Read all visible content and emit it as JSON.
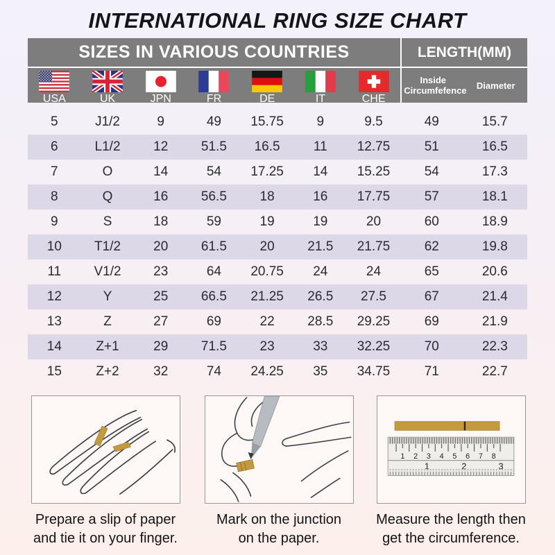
{
  "title": "INTERNATIONAL RING SIZE CHART",
  "colors": {
    "header_gray": "#7d7d7d",
    "row_stripe": "#dcd8e7",
    "paper_gold": "#c49a3e"
  },
  "table": {
    "header_left": "SIZES IN VARIOUS COUNTRIES",
    "header_right": "LENGTH(MM)",
    "countries": [
      {
        "code": "USA"
      },
      {
        "code": "UK"
      },
      {
        "code": "JPN"
      },
      {
        "code": "FR"
      },
      {
        "code": "DE"
      },
      {
        "code": "IT"
      },
      {
        "code": "CHE"
      }
    ],
    "length_columns": [
      "Inside\nCircumfefence",
      "Diameter"
    ],
    "rows": [
      [
        "5",
        "J1/2",
        "9",
        "49",
        "15.75",
        "9",
        "9.5",
        "49",
        "15.7"
      ],
      [
        "6",
        "L1/2",
        "12",
        "51.5",
        "16.5",
        "11",
        "12.75",
        "51",
        "16.5"
      ],
      [
        "7",
        "O",
        "14",
        "54",
        "17.25",
        "14",
        "15.25",
        "54",
        "17.3"
      ],
      [
        "8",
        "Q",
        "16",
        "56.5",
        "18",
        "16",
        "17.75",
        "57",
        "18.1"
      ],
      [
        "9",
        "S",
        "18",
        "59",
        "19",
        "19",
        "20",
        "60",
        "18.9"
      ],
      [
        "10",
        "T1/2",
        "20",
        "61.5",
        "20",
        "21.5",
        "21.75",
        "62",
        "19.8"
      ],
      [
        "11",
        "V1/2",
        "23",
        "64",
        "20.75",
        "24",
        "24",
        "65",
        "20.6"
      ],
      [
        "12",
        "Y",
        "25",
        "66.5",
        "21.25",
        "26.5",
        "27.5",
        "67",
        "21.4"
      ],
      [
        "13",
        "Z",
        "27",
        "69",
        "22",
        "28.5",
        "29.25",
        "69",
        "21.9"
      ],
      [
        "14",
        "Z+1",
        "29",
        "71.5",
        "23",
        "33",
        "32.25",
        "70",
        "22.3"
      ],
      [
        "15",
        "Z+2",
        "32",
        "74",
        "24.25",
        "35",
        "34.75",
        "71",
        "22.7"
      ]
    ]
  },
  "steps": [
    {
      "caption": "Prepare a slip of paper\nand tie it on your finger."
    },
    {
      "caption": "Mark on the junction\non the paper."
    },
    {
      "caption": "Measure the length then\nget the circumference."
    }
  ]
}
